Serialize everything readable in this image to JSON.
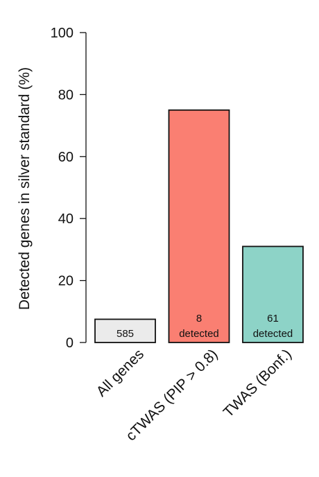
{
  "chart_data": {
    "type": "bar",
    "categories": [
      "All genes",
      "cTWAS (PIP > 0.8)",
      "TWAS (Bonf.)"
    ],
    "values": [
      7.5,
      75,
      31
    ],
    "bar_labels": [
      [
        "585"
      ],
      [
        "8",
        "detected"
      ],
      [
        "61",
        "detected"
      ]
    ],
    "colors": [
      "#ebebeb",
      "#fa7f72",
      "#8dd3c7"
    ],
    "ylabel": "Detected genes in silver standard (%)",
    "ylim": [
      0,
      100
    ],
    "yticks": [
      0,
      20,
      40,
      60,
      80,
      100
    ],
    "grid": false,
    "legend": "none"
  }
}
